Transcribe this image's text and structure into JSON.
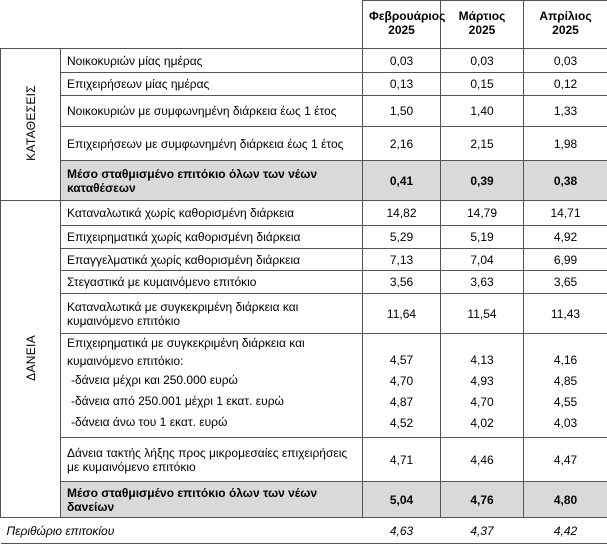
{
  "header": {
    "columns": [
      {
        "month": "Φεβρουάριος",
        "year": "2025"
      },
      {
        "month": "Μάρτιος",
        "year": "2025"
      },
      {
        "month": "Απρίλιος",
        "year": "2025"
      }
    ]
  },
  "sections": [
    {
      "label": "ΚΑΤΑΘΕΣΕΙΣ",
      "rows": [
        {
          "label": "Νοικοκυριών μίας ημέρας",
          "values": [
            "0,03",
            "0,03",
            "0,03"
          ]
        },
        {
          "label": "Επιχειρήσεων μίας ημέρας",
          "values": [
            "0,13",
            "0,15",
            "0,12"
          ]
        },
        {
          "label": "Νοικοκυριών με συμφωνημένη διάρκεια έως 1 έτος",
          "values": [
            "1,50",
            "1,40",
            "1,33"
          ]
        },
        {
          "label": "Επιχειρήσεων με συμφωνημένη διάρκεια έως 1 έτος",
          "values": [
            "2,16",
            "2,15",
            "1,98"
          ]
        },
        {
          "label": "Μέσο σταθμισμένο επιτόκιο όλων των νέων καταθέσεων",
          "values": [
            "0,41",
            "0,39",
            "0,38"
          ],
          "bold": true
        }
      ]
    },
    {
      "label": "ΔΑΝΕΙΑ",
      "rows": [
        {
          "label": "Καταναλωτικά χωρίς καθορισμένη διάρκεια",
          "values": [
            "14,82",
            "14,79",
            "14,71"
          ]
        },
        {
          "label": "Επιχειρηματικά χωρίς καθορισμένη διάρκεια",
          "values": [
            "5,29",
            "5,19",
            "4,92"
          ]
        },
        {
          "label": "Επαγγελματικά χωρίς καθορισμένη διάρκεια",
          "values": [
            "7,13",
            "7,04",
            "6,99"
          ]
        },
        {
          "label": "Στεγαστικά με κυμαινόμενο επιτόκιο",
          "values": [
            "3,56",
            "3,63",
            "3,65"
          ]
        },
        {
          "label": "Καταναλωτικά με συγκεκριμένη διάρκεια και κυμαινόμενο επιτόκιο",
          "values": [
            "11,64",
            "11,54",
            "11,43"
          ]
        },
        {
          "label": "Επιχειρηματικά με συγκεκριμένη διάρκεια και κυμαινόμενο επιτόκιο:",
          "values": [
            "4,57",
            "4,13",
            "4,16"
          ],
          "subrows": [
            {
              "label": "-δάνεια μέχρι και 250.000 ευρώ",
              "values": [
                "4,70",
                "4,93",
                "4,85"
              ]
            },
            {
              "label": "-δάνεια από 250.001 μέχρι 1 εκατ. ευρώ",
              "values": [
                "4,87",
                "4,70",
                "4,55"
              ]
            },
            {
              "label": "-δάνεια άνω του 1 εκατ. ευρώ",
              "values": [
                "4,52",
                "4,02",
                "4,03"
              ]
            }
          ]
        },
        {
          "label": "Δάνεια τακτής λήξης προς μικρομεσαίες επιχειρήσεις με κυμαινόμενο επιτόκιο",
          "values": [
            "4,71",
            "4,46",
            "4,47"
          ]
        },
        {
          "label": "Μέσο σταθμισμένο επιτόκιο όλων των νέων δανείων",
          "values": [
            "5,04",
            "4,76",
            "4,80"
          ],
          "bold": true
        }
      ]
    }
  ],
  "footer": {
    "label": "Περιθώριο επιτοκίου",
    "values": [
      "4,63",
      "4,37",
      "4,42"
    ]
  }
}
